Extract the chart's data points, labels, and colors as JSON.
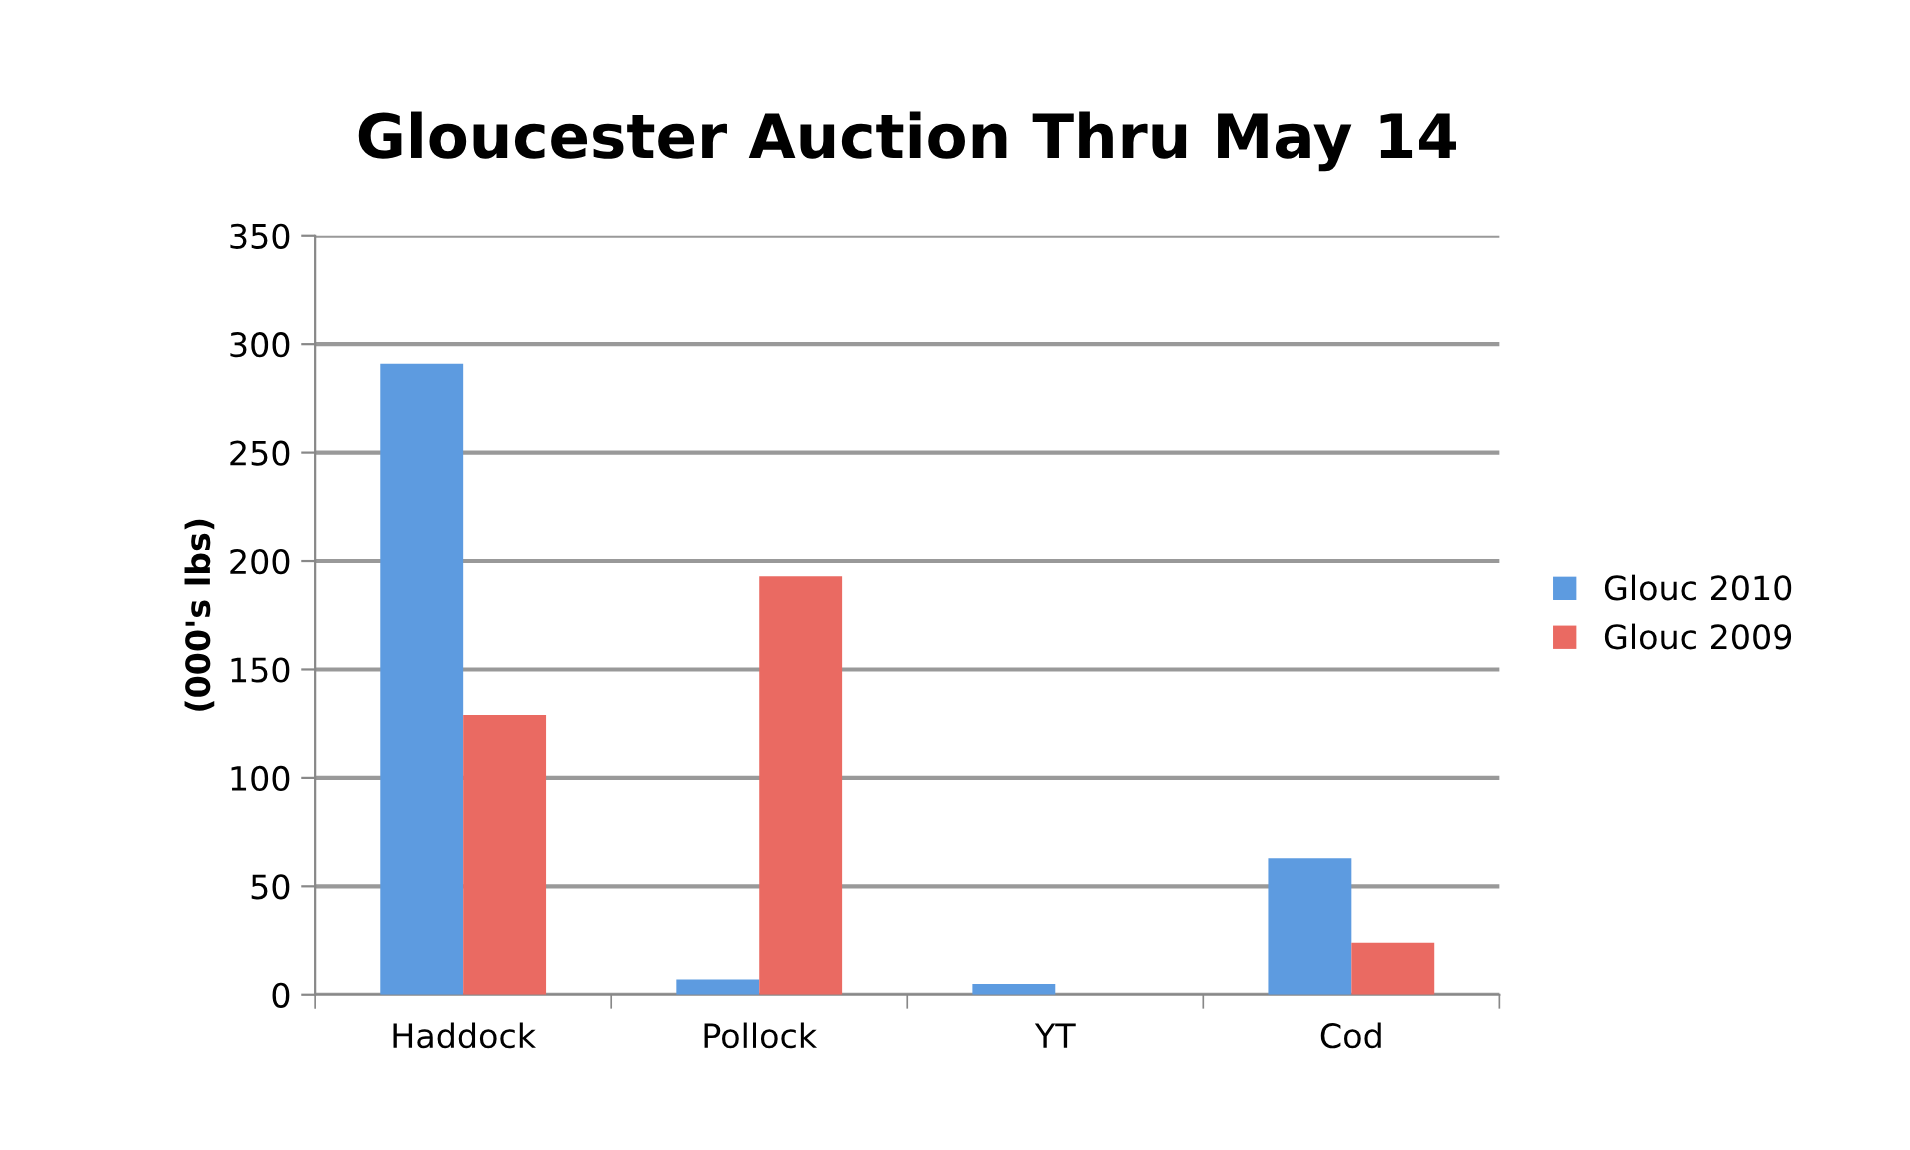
{
  "chart_data": {
    "type": "bar",
    "title": "Gloucester Auction Thru May 14",
    "ylabel": "(000's lbs)",
    "categories": [
      "Haddock",
      "Pollock",
      "YT",
      "Cod"
    ],
    "series": [
      {
        "name": "Glouc 2010",
        "color": "#5d9be0",
        "values": [
          291,
          7,
          5,
          63
        ]
      },
      {
        "name": "Glouc 2009",
        "color": "#ea6a62",
        "values": [
          129,
          193,
          null,
          24
        ]
      }
    ],
    "ylim": [
      0,
      350
    ],
    "yticks": [
      0,
      50,
      100,
      150,
      200,
      250,
      300,
      350
    ],
    "grid": "y",
    "legend": "right"
  }
}
